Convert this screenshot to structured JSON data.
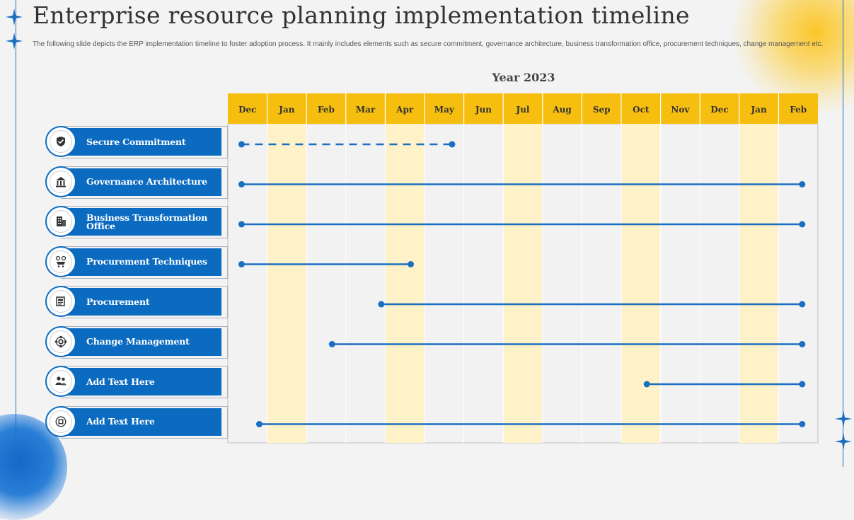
{
  "title": "Enterprise resource planning implementation timeline",
  "subtitle": "The following slide depicts the ERP implementation timeline to foster adoption process. It mainly includes elements such as secure commitment, governance architecture, business transformation office, procurement techniques, change management etc.",
  "year_label": "Year 2023",
  "months": [
    "Dec",
    "Jan",
    "Feb",
    "Mar",
    "Apr",
    "May",
    "Jun",
    "Jul",
    "Aug",
    "Sep",
    "Oct",
    "Nov",
    "Dec",
    "Jan",
    "Feb"
  ],
  "colors": {
    "accent": "#0b6bc1",
    "header": "#f6be0f",
    "highlight": "#fff2c9",
    "line": "#1a6fc0"
  },
  "highlighted_month_indices": [
    1,
    4,
    7,
    10,
    13
  ],
  "rows": [
    {
      "label": "Secure Commitment",
      "icon": "handshake-shield-icon",
      "start": 0.35,
      "end": 5.7,
      "style": "dashed"
    },
    {
      "label": "Governance Architecture",
      "icon": "building-people-icon",
      "start": 0.35,
      "end": 14.6,
      "style": "solid"
    },
    {
      "label": "Business Transformation Office",
      "icon": "office-building-icon",
      "start": 0.35,
      "end": 14.6,
      "style": "solid"
    },
    {
      "label": "Procurement Techniques",
      "icon": "procurement-cart-icon",
      "start": 0.35,
      "end": 4.65,
      "style": "solid"
    },
    {
      "label": "Procurement",
      "icon": "document-icon",
      "start": 3.9,
      "end": 14.6,
      "style": "solid"
    },
    {
      "label": "Change Management",
      "icon": "gear-cycle-icon",
      "start": 2.65,
      "end": 14.6,
      "style": "solid"
    },
    {
      "label": "Add Text Here",
      "icon": "team-icon",
      "start": 10.65,
      "end": 14.6,
      "style": "solid"
    },
    {
      "label": "Add Text Here",
      "icon": "erp-icon",
      "start": 0.8,
      "end": 14.6,
      "style": "solid"
    }
  ]
}
